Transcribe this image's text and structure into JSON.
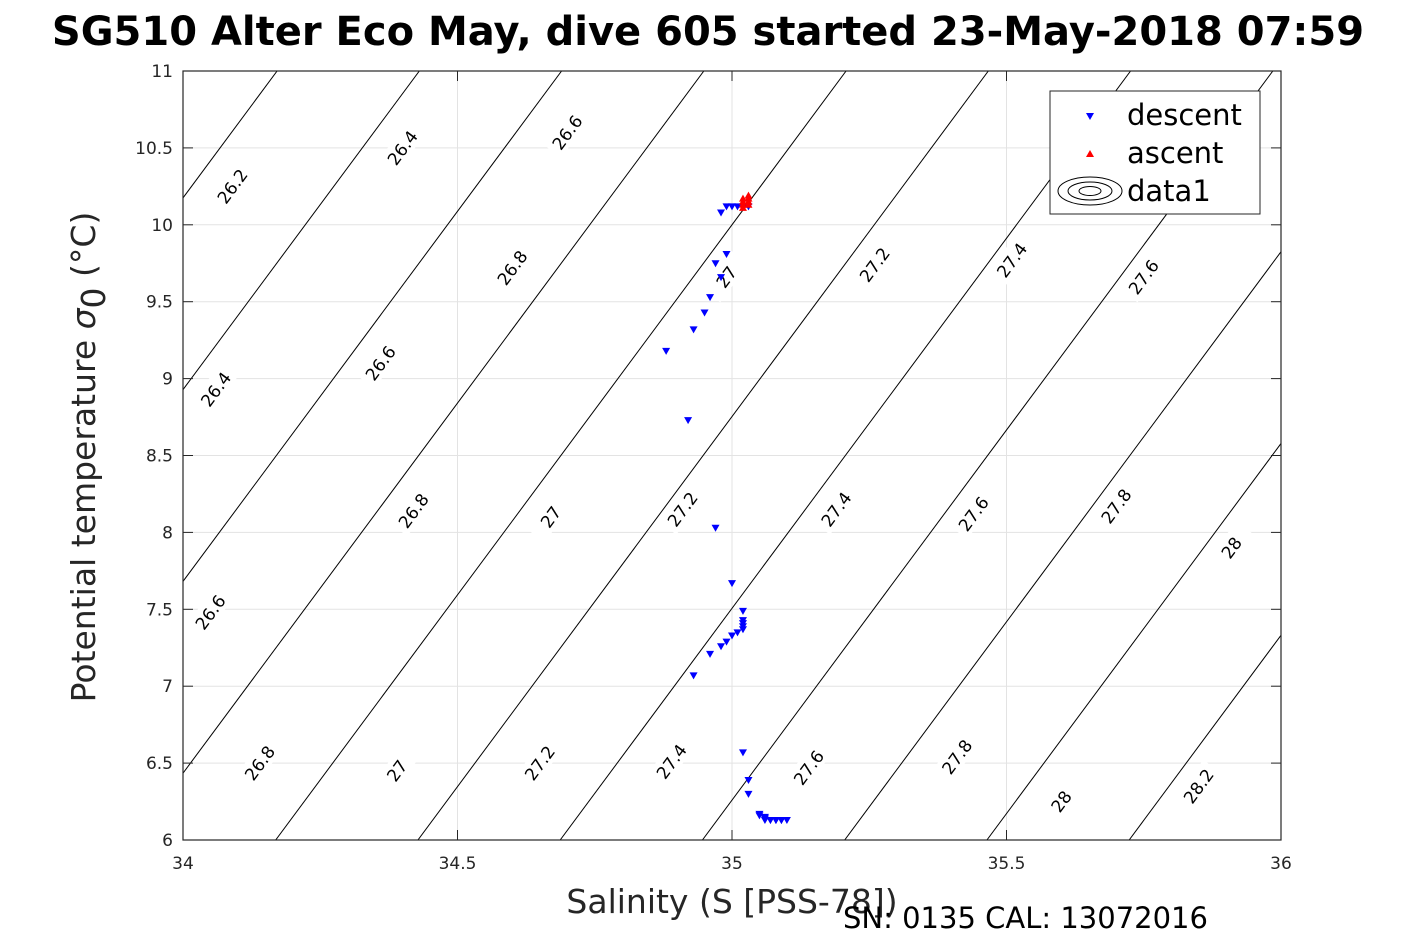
{
  "chart_data": {
    "type": "scatter",
    "title": "SG510 Alter Eco May, dive 605 started 23-May-2018 07:59",
    "xlabel": "Salinity (S [PSS-78])",
    "ylabel_main": "Potential temperature ",
    "ylabel_sigma": "σ",
    "ylabel_sub": "0",
    "ylabel_unit": " (°C)",
    "xlim": [
      34,
      36
    ],
    "ylim": [
      6,
      11
    ],
    "xticks": [
      34,
      34.5,
      35,
      35.5,
      36
    ],
    "yticks": [
      6,
      6.5,
      7,
      7.5,
      8,
      8.5,
      9,
      9.5,
      10,
      10.5,
      11
    ],
    "grid": true,
    "legend_position": "top-right",
    "legend": [
      {
        "label": "descent",
        "marker": "triangle-down",
        "color": "#0000ff"
      },
      {
        "label": "ascent",
        "marker": "triangle-up",
        "color": "#ff0000"
      },
      {
        "label": "data1",
        "marker": "contour",
        "color": "#000000"
      }
    ],
    "footnote": "SN: 0135  CAL: 13072016",
    "contour_levels": [
      26.2,
      26.4,
      26.6,
      26.8,
      27,
      27.2,
      27.4,
      27.6,
      27.8,
      28,
      28.2
    ],
    "contour_labels": [
      {
        "text": "26.2",
        "s": 34.09,
        "t": 10.25
      },
      {
        "text": "26.4",
        "s": 34.4,
        "t": 10.5
      },
      {
        "text": "26.6",
        "s": 34.7,
        "t": 10.6
      },
      {
        "text": "26.4",
        "s": 34.06,
        "t": 8.93
      },
      {
        "text": "26.6",
        "s": 34.36,
        "t": 9.1
      },
      {
        "text": "26.8",
        "s": 34.6,
        "t": 9.72
      },
      {
        "text": "27",
        "s": 34.99,
        "t": 9.66
      },
      {
        "text": "27.2",
        "s": 35.26,
        "t": 9.74
      },
      {
        "text": "27.4",
        "s": 35.51,
        "t": 9.77
      },
      {
        "text": "27.6",
        "s": 35.75,
        "t": 9.66
      },
      {
        "text": "26.6",
        "s": 34.05,
        "t": 7.48
      },
      {
        "text": "26.8",
        "s": 34.42,
        "t": 8.14
      },
      {
        "text": "27",
        "s": 34.67,
        "t": 8.1
      },
      {
        "text": "27.2",
        "s": 34.91,
        "t": 8.15
      },
      {
        "text": "27.4",
        "s": 35.19,
        "t": 8.15
      },
      {
        "text": "27.6",
        "s": 35.44,
        "t": 8.12
      },
      {
        "text": "27.8",
        "s": 35.7,
        "t": 8.17
      },
      {
        "text": "28",
        "s": 35.91,
        "t": 7.9
      },
      {
        "text": "26.8",
        "s": 34.14,
        "t": 6.5
      },
      {
        "text": "27",
        "s": 34.39,
        "t": 6.45
      },
      {
        "text": "27.2",
        "s": 34.65,
        "t": 6.5
      },
      {
        "text": "27.4",
        "s": 34.89,
        "t": 6.51
      },
      {
        "text": "27.6",
        "s": 35.14,
        "t": 6.47
      },
      {
        "text": "27.8",
        "s": 35.41,
        "t": 6.54
      },
      {
        "text": "28",
        "s": 35.6,
        "t": 6.25
      },
      {
        "text": "28.2",
        "s": 35.85,
        "t": 6.35
      }
    ],
    "series": [
      {
        "name": "descent",
        "marker": "triangle-down",
        "color": "#0000ff",
        "points": [
          [
            35.03,
            10.12
          ],
          [
            35.02,
            10.12
          ],
          [
            35.01,
            10.12
          ],
          [
            35.0,
            10.12
          ],
          [
            34.99,
            10.12
          ],
          [
            34.98,
            10.08
          ],
          [
            34.99,
            9.81
          ],
          [
            34.97,
            9.75
          ],
          [
            34.98,
            9.66
          ],
          [
            34.96,
            9.53
          ],
          [
            34.95,
            9.43
          ],
          [
            34.93,
            9.32
          ],
          [
            34.88,
            9.18
          ],
          [
            34.92,
            8.73
          ],
          [
            34.97,
            8.03
          ],
          [
            35.0,
            7.67
          ],
          [
            35.02,
            7.49
          ],
          [
            35.02,
            7.43
          ],
          [
            35.02,
            7.41
          ],
          [
            35.02,
            7.39
          ],
          [
            35.02,
            7.37
          ],
          [
            35.01,
            7.35
          ],
          [
            35.0,
            7.33
          ],
          [
            34.99,
            7.29
          ],
          [
            34.98,
            7.26
          ],
          [
            34.96,
            7.21
          ],
          [
            34.93,
            7.07
          ],
          [
            35.02,
            6.57
          ],
          [
            35.03,
            6.39
          ],
          [
            35.03,
            6.3
          ],
          [
            35.05,
            6.17
          ],
          [
            35.05,
            6.16
          ],
          [
            35.06,
            6.15
          ],
          [
            35.06,
            6.14
          ],
          [
            35.06,
            6.13
          ],
          [
            35.07,
            6.13
          ],
          [
            35.07,
            6.13
          ],
          [
            35.08,
            6.13
          ],
          [
            35.08,
            6.13
          ],
          [
            35.08,
            6.13
          ],
          [
            35.09,
            6.13
          ],
          [
            35.09,
            6.13
          ],
          [
            35.09,
            6.13
          ],
          [
            35.1,
            6.13
          ]
        ]
      },
      {
        "name": "ascent",
        "marker": "triangle-up",
        "color": "#ff0000",
        "points": [
          [
            35.02,
            10.17
          ],
          [
            35.03,
            10.17
          ],
          [
            35.02,
            10.15
          ],
          [
            35.03,
            10.15
          ],
          [
            35.02,
            10.13
          ],
          [
            35.03,
            10.13
          ],
          [
            35.03,
            10.19
          ],
          [
            35.02,
            10.11
          ]
        ]
      }
    ]
  }
}
